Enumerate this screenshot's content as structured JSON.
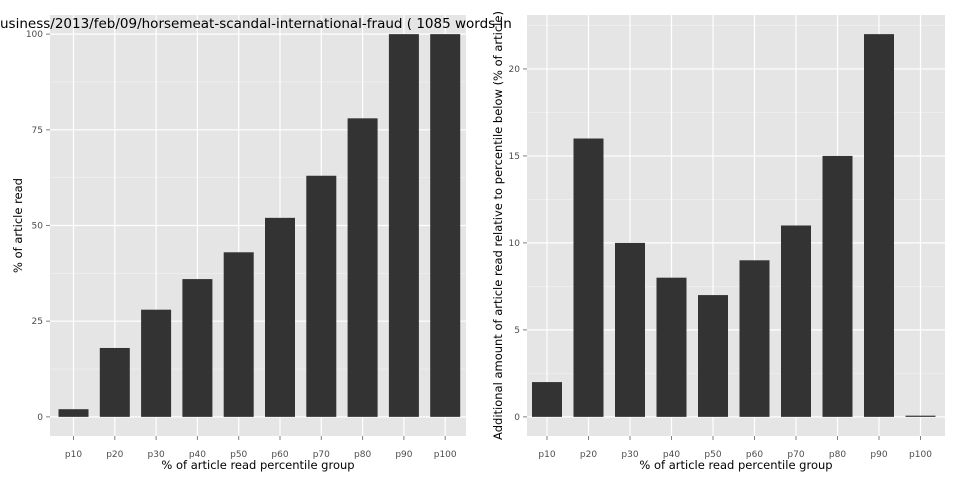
{
  "chart_data": [
    {
      "type": "bar",
      "title": "usiness/2013/feb/09/horsemeat-scandal-international-fraud ( 1085 words in",
      "xlabel": "% of article read percentile group",
      "ylabel": "% of article read",
      "categories": [
        "p10",
        "p20",
        "p30",
        "p40",
        "p50",
        "p60",
        "p70",
        "p80",
        "p90",
        "p100"
      ],
      "values": [
        2,
        18,
        28,
        36,
        43,
        52,
        63,
        78,
        100,
        100
      ],
      "ylim": [
        0,
        100
      ],
      "yticks": [
        0,
        25,
        50,
        75,
        100
      ],
      "grid": true,
      "bar_color": "#333333",
      "panel_color": "#e5e5e5",
      "grid_color": "#ffffff"
    },
    {
      "type": "bar",
      "title": "",
      "xlabel": "% of article read percentile group",
      "ylabel": "Additional amount of article read relative to percentile below (% of article)",
      "categories": [
        "p10",
        "p20",
        "p30",
        "p40",
        "p50",
        "p60",
        "p70",
        "p80",
        "p90",
        "p100"
      ],
      "values": [
        2,
        16,
        10,
        8,
        7,
        9,
        11,
        15,
        22,
        0
      ],
      "ylim": [
        0,
        22
      ],
      "yticks": [
        0,
        5,
        10,
        15,
        20
      ],
      "grid": true,
      "bar_color": "#333333",
      "panel_color": "#e5e5e5",
      "grid_color": "#ffffff"
    }
  ]
}
